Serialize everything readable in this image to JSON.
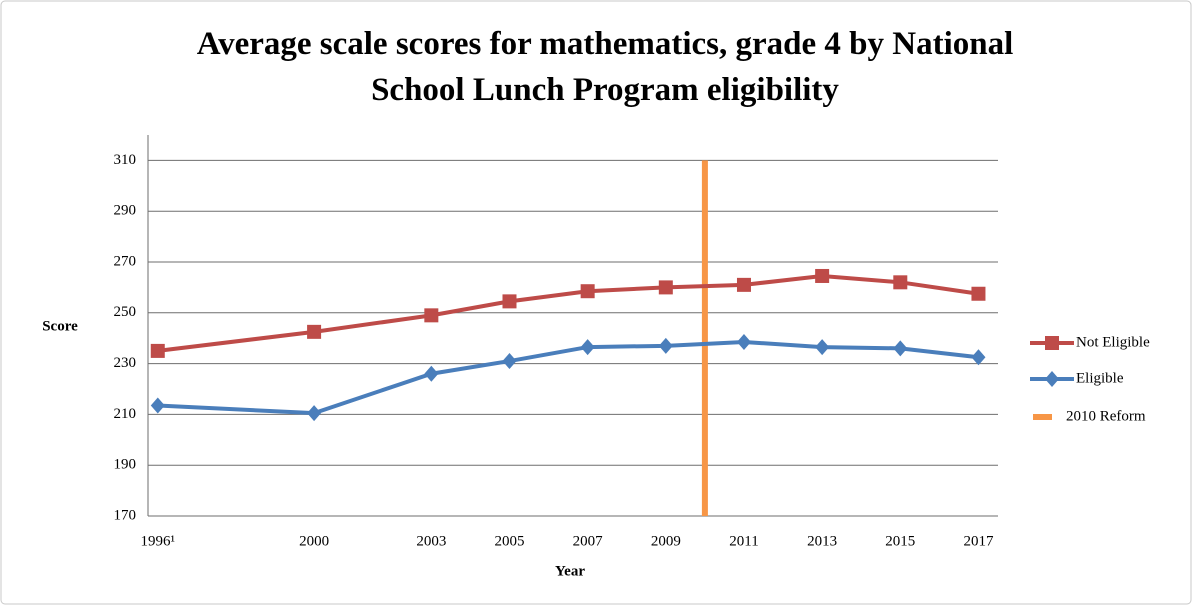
{
  "chart_data": {
    "type": "line",
    "title": "Average scale scores for mathematics, grade 4 by National School Lunch Program eligibility",
    "x_label": "Year",
    "y_label": "Score",
    "x": [
      1996,
      2000,
      2003,
      2005,
      2007,
      2009,
      2011,
      2013,
      2015,
      2017
    ],
    "series": [
      {
        "name": "Not Eligible",
        "color": "#be4b48",
        "marker": "square",
        "values": [
          235,
          242.5,
          249,
          254.5,
          258.5,
          260,
          261,
          264.5,
          262,
          257.5
        ]
      },
      {
        "name": "Eligible",
        "color": "#4a7ebb",
        "marker": "diamond",
        "values": [
          213.5,
          210.5,
          226,
          231,
          236.5,
          237,
          238.5,
          236.5,
          236,
          232.5
        ]
      }
    ],
    "reference_line": {
      "name": "2010 Reform",
      "x": 2010,
      "color": "#f79646"
    },
    "xlim": [
      1995.75,
      2017.5
    ],
    "xticks": [
      {
        "value": 1996,
        "label": "1996¹"
      },
      2000,
      2003,
      2005,
      2007,
      2009,
      2011,
      2013,
      2015,
      2017
    ],
    "ylim": [
      170,
      320
    ],
    "yticks": [
      170,
      190,
      210,
      230,
      250,
      270,
      290,
      310
    ],
    "grid": true,
    "legend": "right"
  }
}
